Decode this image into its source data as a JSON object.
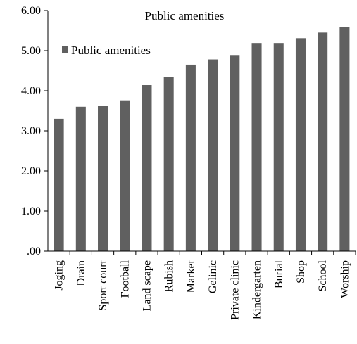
{
  "chart_data": {
    "type": "bar",
    "title": "Public amenities",
    "xlabel": "",
    "ylabel": "",
    "ylim": [
      0,
      6
    ],
    "yticks": [
      ".00",
      "1.00",
      "2.00",
      "3.00",
      "4.00",
      "5.00",
      "6.00"
    ],
    "grid": false,
    "legend_position": "top-left",
    "categories": [
      "Joging",
      "Drain",
      "Sport court",
      "Football",
      "Land scape",
      "Rubish",
      "Market",
      "Gelinic",
      "Private clinic",
      "Kindergarten",
      "Burial",
      "Shop",
      "School",
      "Worship"
    ],
    "series": [
      {
        "name": "Public amenities",
        "color": "#606060",
        "values": [
          3.3,
          3.6,
          3.63,
          3.76,
          4.14,
          4.34,
          4.65,
          4.78,
          4.89,
          5.19,
          5.19,
          5.31,
          5.45,
          5.58
        ]
      }
    ]
  }
}
